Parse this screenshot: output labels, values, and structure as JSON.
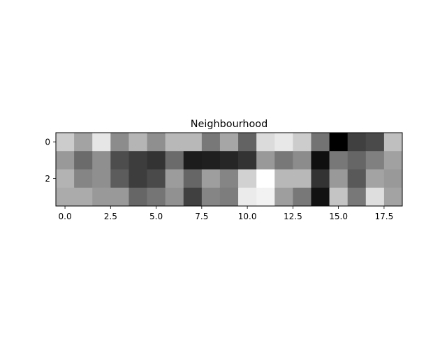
{
  "chart_data": {
    "type": "heatmap",
    "title": "Neighbourhood",
    "xlabel": "",
    "ylabel": "",
    "colormap": "gray",
    "rows": 4,
    "cols": 19,
    "xlim": [
      -0.5,
      18.5
    ],
    "ylim": [
      3.5,
      -0.5
    ],
    "x_ticks": [
      0.0,
      2.5,
      5.0,
      7.5,
      10.0,
      12.5,
      15.0,
      17.5
    ],
    "x_tick_labels": [
      "0.0",
      "2.5",
      "5.0",
      "7.5",
      "10.0",
      "12.5",
      "15.0",
      "17.5"
    ],
    "y_ticks": [
      0,
      2
    ],
    "y_tick_labels": [
      "0",
      "2"
    ],
    "grid": false,
    "values": [
      [
        0.8,
        0.64,
        0.9,
        0.55,
        0.71,
        0.56,
        0.72,
        0.72,
        0.47,
        0.65,
        0.39,
        0.86,
        0.91,
        0.8,
        0.45,
        0.0,
        0.25,
        0.29,
        0.75
      ],
      [
        0.6,
        0.42,
        0.56,
        0.3,
        0.24,
        0.2,
        0.42,
        0.11,
        0.12,
        0.15,
        0.2,
        0.6,
        0.47,
        0.55,
        0.06,
        0.47,
        0.4,
        0.5,
        0.63
      ],
      [
        0.7,
        0.52,
        0.56,
        0.36,
        0.24,
        0.29,
        0.61,
        0.4,
        0.62,
        0.52,
        0.82,
        1.0,
        0.72,
        0.72,
        0.2,
        0.6,
        0.35,
        0.64,
        0.6
      ],
      [
        0.67,
        0.67,
        0.6,
        0.6,
        0.4,
        0.46,
        0.57,
        0.25,
        0.52,
        0.49,
        0.92,
        0.95,
        0.62,
        0.47,
        0.07,
        0.77,
        0.47,
        0.87,
        0.64
      ]
    ]
  }
}
